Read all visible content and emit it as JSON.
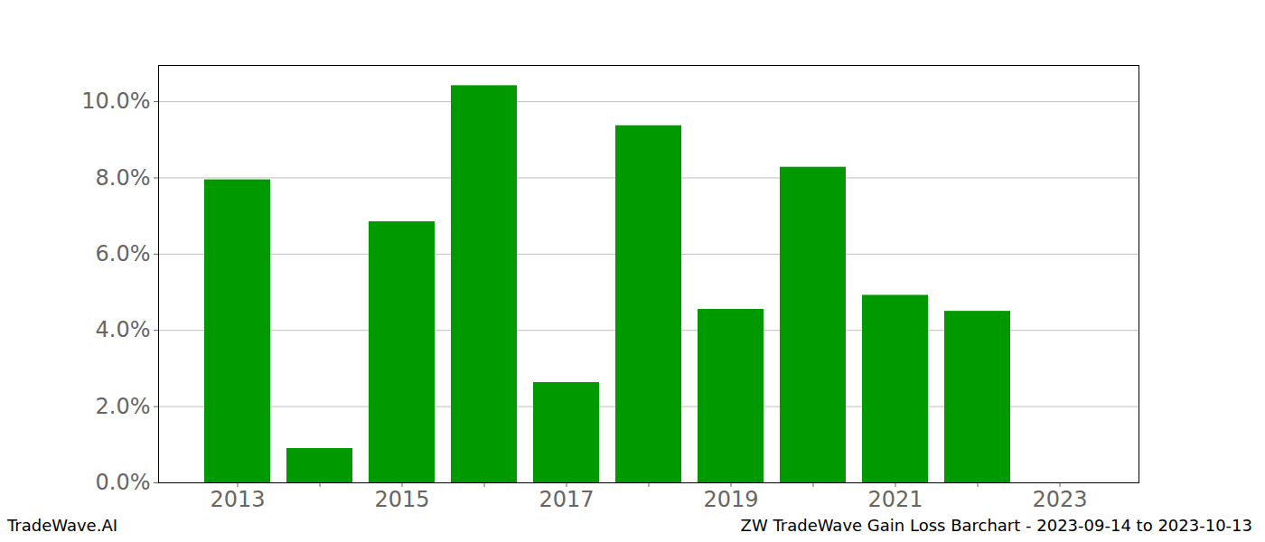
{
  "chart_data": {
    "type": "bar",
    "title": "ZW TradeWave Gain Loss Barchart - 2023-09-14 to 2023-10-13",
    "watermark": "TradeWave.AI",
    "categories": [
      "2013",
      null,
      "2015",
      null,
      "2017",
      null,
      "2019",
      null,
      "2021",
      null,
      "2023"
    ],
    "values": [
      7.95,
      0.9,
      6.85,
      10.42,
      2.63,
      9.37,
      4.55,
      8.28,
      4.92,
      4.5,
      null
    ],
    "color": "#009900",
    "ylim": [
      0,
      10.95
    ],
    "yticks": [
      {
        "value": 0,
        "label": "0.0%"
      },
      {
        "value": 2,
        "label": "2.0%"
      },
      {
        "value": 4,
        "label": "4.0%"
      },
      {
        "value": 6,
        "label": "6.0%"
      },
      {
        "value": 8,
        "label": "8.0%"
      },
      {
        "value": 10,
        "label": "10.0%"
      }
    ],
    "grid": true
  }
}
